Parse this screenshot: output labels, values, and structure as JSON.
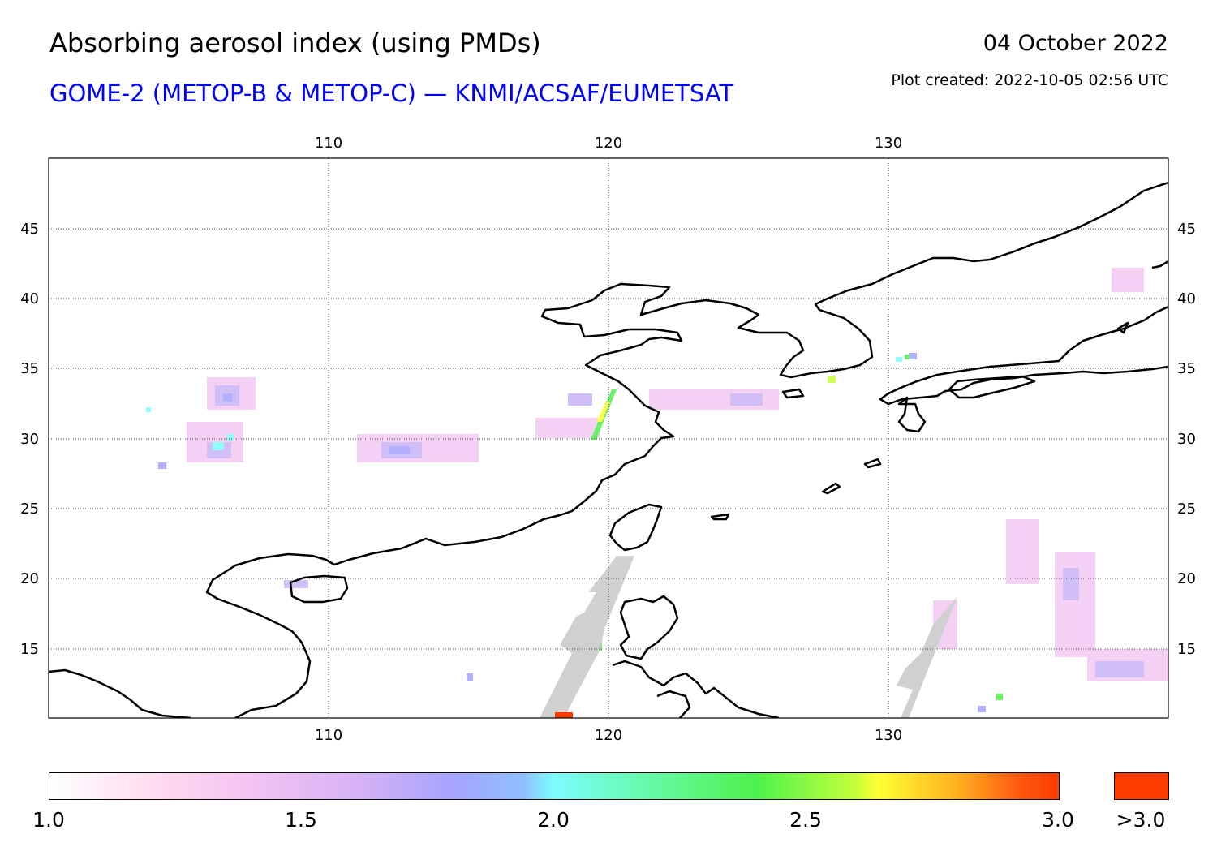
{
  "header": {
    "title": "Absorbing aerosol index (using PMDs)",
    "subtitle": "GOME-2 (METOP-B & METOP-C) — KNMI/ACSAF/EUMETSAT",
    "date": "04 October 2022",
    "created": "Plot created: 2022-10-05 02:56 UTC"
  },
  "map": {
    "lon_ticks": [
      "110",
      "120",
      "130"
    ],
    "lat_ticks": [
      "45",
      "40",
      "35",
      "30",
      "25",
      "20",
      "15"
    ],
    "lon_range": [
      100,
      140
    ],
    "lat_range": [
      10,
      50
    ],
    "coastline_color": "#000000",
    "grid": "dotted",
    "missing_data_color": "#d0d0d0"
  },
  "colorbar": {
    "labels": [
      "1.0",
      "1.5",
      "2.0",
      "2.5",
      "3.0",
      ">3.0"
    ],
    "overflow_color": "#ff3c00"
  }
}
